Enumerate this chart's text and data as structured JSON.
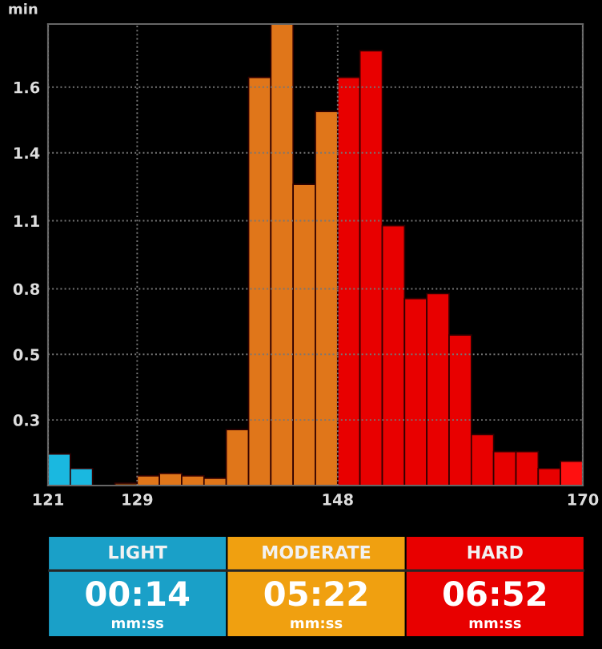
{
  "chart_data": [
    {
      "type": "histogram",
      "ylabel": "min",
      "bins": [
        121,
        123.04,
        125.08,
        127.13,
        129.17,
        131.21,
        133.25,
        135.29,
        137.33,
        139.38,
        141.42,
        143.46,
        145.5,
        147.54,
        149.58,
        151.63,
        153.67,
        155.71,
        157.75,
        159.79,
        161.83,
        163.88,
        165.92,
        167.96,
        170
      ],
      "values": [
        0.13,
        0.07,
        0,
        0.01,
        0.04,
        0.05,
        0.04,
        0.03,
        0.23,
        1.68,
        1.9,
        1.24,
        1.54,
        1.68,
        1.79,
        1.07,
        0.77,
        0.79,
        0.62,
        0.21,
        0.14,
        0.14,
        0.07,
        0.1
      ],
      "colors": [
        "#1ab8e0",
        "#1ab8e0",
        "#1ab8e0",
        "#7a3a08",
        "#e0761a",
        "#e0761a",
        "#e0761a",
        "#e0761a",
        "#e0761a",
        "#e0761a",
        "#e0761a",
        "#e0761a",
        "#e0761a",
        "#e80000",
        "#e80000",
        "#e80000",
        "#e80000",
        "#e80000",
        "#e80000",
        "#e80000",
        "#e80000",
        "#e80000",
        "#e80000",
        "#ff1010"
      ],
      "xlim": [
        121,
        170
      ],
      "xticks": [
        121,
        {
          "value": 129.17,
          "label": "129"
        },
        {
          "value": 147.54,
          "label": "148"
        },
        170
      ],
      "ylim": [
        0,
        1.9
      ],
      "yticks": [
        {
          "value": 0.27,
          "label": "0.3"
        },
        {
          "value": 0.54,
          "label": "0.5"
        },
        {
          "value": 0.81,
          "label": "0.8"
        },
        {
          "value": 1.09,
          "label": "1.1"
        },
        {
          "value": 1.37,
          "label": "1.4"
        },
        {
          "value": 1.64,
          "label": "1.6"
        }
      ],
      "grid": true,
      "line_style": "dotted"
    },
    {
      "type": "other",
      "categories": [
        "LIGHT",
        "MODERATE",
        "HARD"
      ],
      "value_labels": [
        "00:14",
        "05:22",
        "06:52"
      ],
      "colors": [
        "#1aa0c8",
        "#f0a010",
        "#e80000"
      ],
      "annotations": [
        "mm:ss",
        "mm:ss",
        "mm:ss"
      ]
    }
  ]
}
